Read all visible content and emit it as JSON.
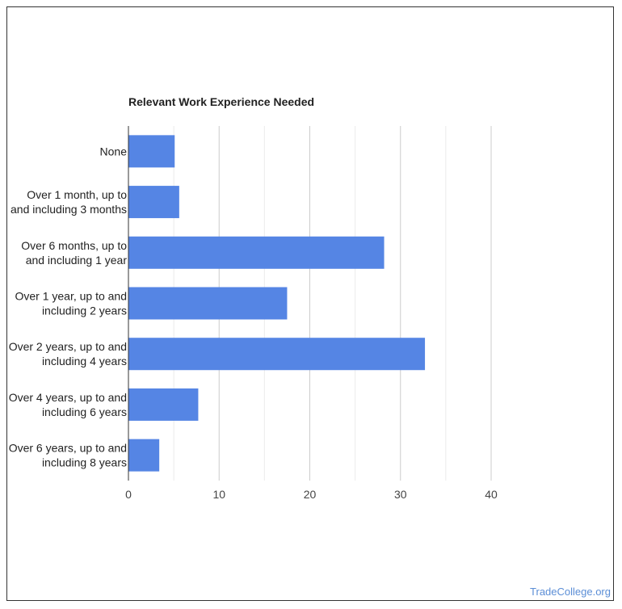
{
  "chart_data": {
    "type": "bar",
    "orientation": "horizontal",
    "title": "Relevant Work Experience Needed",
    "categories": [
      [
        "None"
      ],
      [
        "Over 1 month, up to",
        "and including 3 months"
      ],
      [
        "Over 6 months, up to",
        "and including 1 year"
      ],
      [
        "Over 1 year, up to and",
        "including 2 years"
      ],
      [
        "Over 2 years, up to and",
        "including 4 years"
      ],
      [
        "Over 4 years, up to and",
        "including 6 years"
      ],
      [
        "Over 6 years, up to and",
        "including 8 years"
      ]
    ],
    "values": [
      5.1,
      5.6,
      28.2,
      17.5,
      32.7,
      7.7,
      3.4
    ],
    "xlim": [
      0,
      40
    ],
    "xticks": [
      0,
      10,
      20,
      30,
      40
    ],
    "minor_gridlines": [
      5,
      15,
      25,
      35
    ],
    "xlabel": "",
    "ylabel": "",
    "grid": true,
    "legend": "none"
  },
  "colors": {
    "bar": "#5585e4",
    "major_grid": "#cccccc",
    "minor_grid": "#ebebeb",
    "axis": "#333333",
    "label": "#222222",
    "tick": "#444444"
  },
  "watermark": "TradeCollege.org"
}
